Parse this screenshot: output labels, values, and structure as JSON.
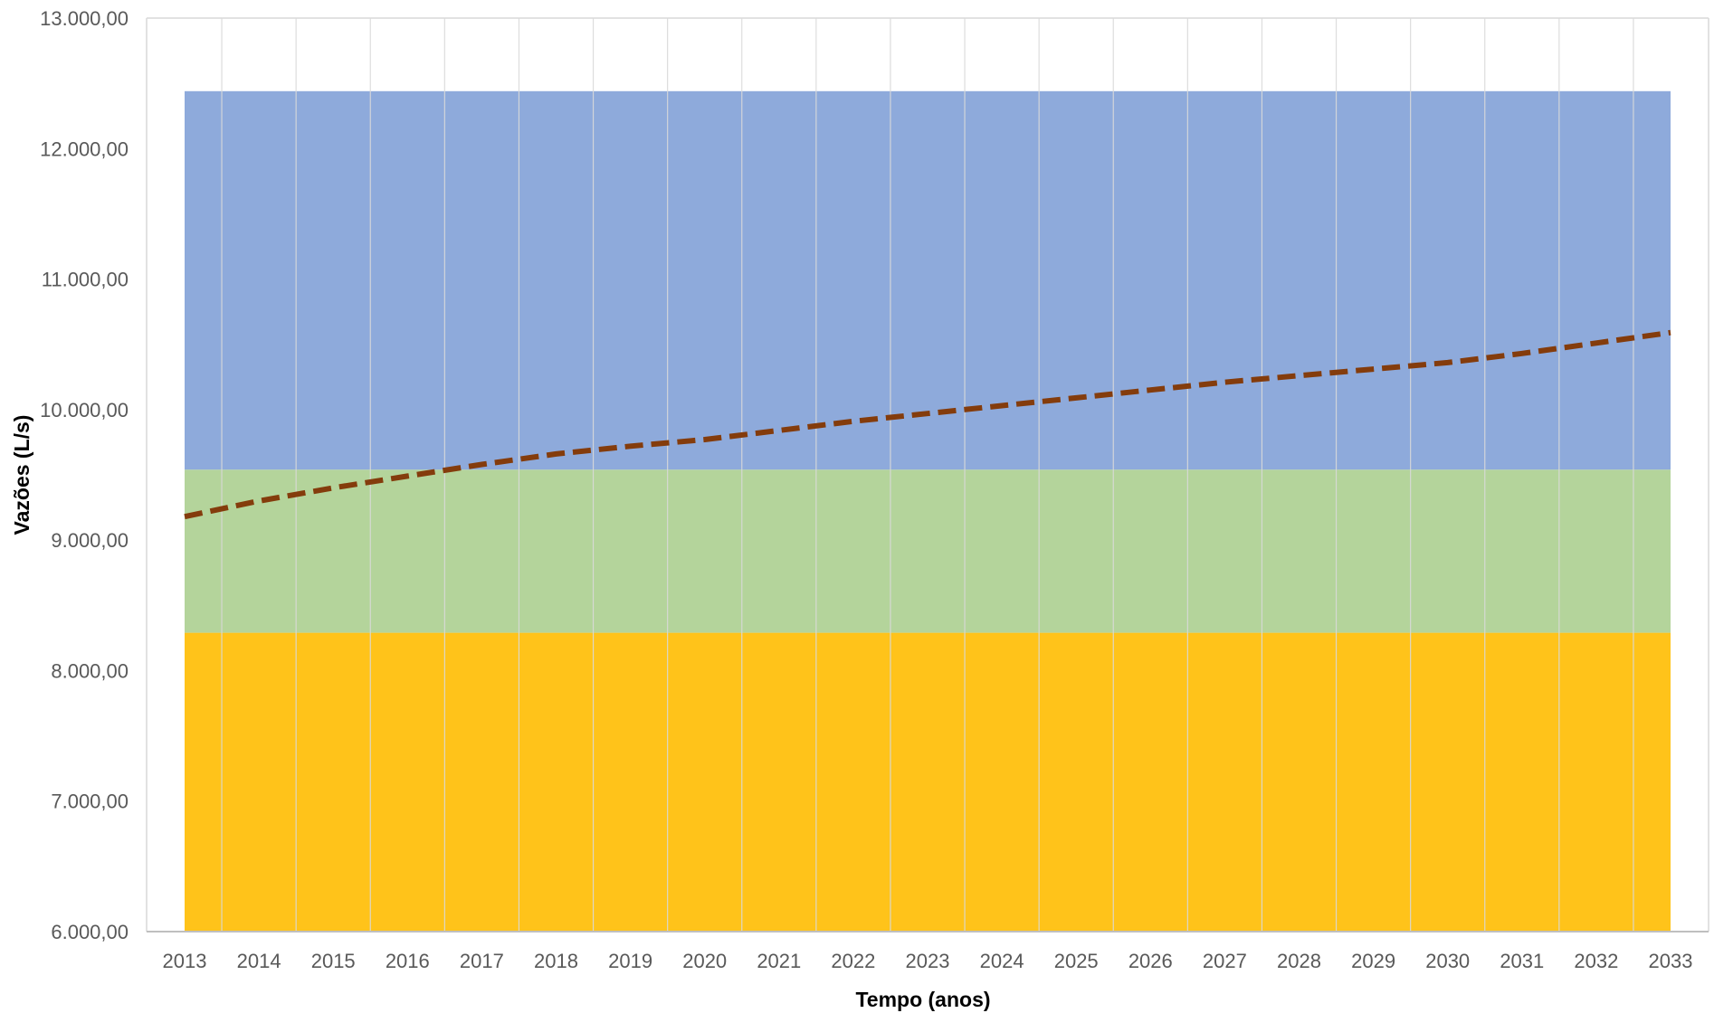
{
  "chart_data": {
    "type": "area",
    "title": "",
    "xlabel": "Tempo (anos)",
    "ylabel": "Vazões (L/s)",
    "ylim": [
      6000,
      13000
    ],
    "y_ticks": [
      "6.000,00",
      "7.000,00",
      "8.000,00",
      "9.000,00",
      "10.000,00",
      "11.000,00",
      "12.000,00",
      "13.000,00"
    ],
    "categories": [
      "2013",
      "2014",
      "2015",
      "2016",
      "2017",
      "2018",
      "2019",
      "2020",
      "2021",
      "2022",
      "2023",
      "2024",
      "2025",
      "2026",
      "2027",
      "2028",
      "2029",
      "2030",
      "2031",
      "2032",
      "2033"
    ],
    "grid": "vertical",
    "bands": [
      {
        "from": 6000,
        "to": 8290,
        "color": "#ffc31a"
      },
      {
        "from": 8290,
        "to": 9540,
        "color": "#b4d49b"
      },
      {
        "from": 9540,
        "to": 12440,
        "color": "#8eaadb"
      }
    ],
    "series": [
      {
        "type": "line",
        "style": "dashed",
        "color": "#843c0c",
        "values": [
          9180,
          9300,
          9400,
          9490,
          9580,
          9660,
          9720,
          9770,
          9840,
          9910,
          9970,
          10030,
          10090,
          10150,
          10210,
          10260,
          10310,
          10360,
          10430,
          10510,
          10590
        ]
      }
    ]
  }
}
